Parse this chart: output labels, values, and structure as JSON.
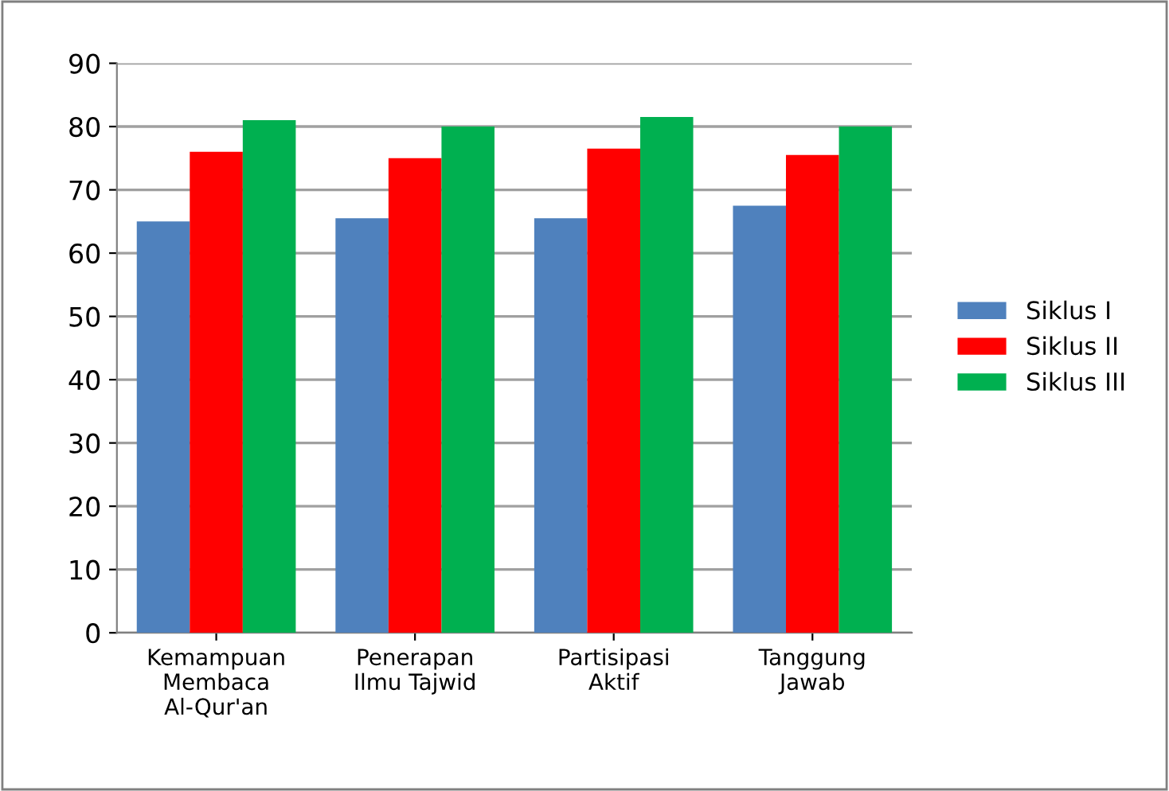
{
  "chart_data": {
    "type": "bar",
    "categories": [
      "Kemampuan\nMembaca\nAl-Qur'an",
      "Penerapan\nIlmu Tajwid",
      "Partisipasi\nAktif",
      "Tanggung\nJawab"
    ],
    "series": [
      {
        "name": "Siklus I",
        "color": "#4f81bd",
        "values": [
          65,
          65.5,
          65.5,
          67.5
        ]
      },
      {
        "name": "Siklus II",
        "color": "#ff0000",
        "values": [
          76,
          75,
          76.5,
          75.5
        ]
      },
      {
        "name": "Siklus III",
        "color": "#00b050",
        "values": [
          81,
          80,
          81.5,
          80
        ]
      }
    ],
    "ylim": [
      0,
      90
    ],
    "yticks": [
      0,
      10,
      20,
      30,
      40,
      50,
      60,
      70,
      80,
      90
    ],
    "grid": "y",
    "legend": "right"
  }
}
